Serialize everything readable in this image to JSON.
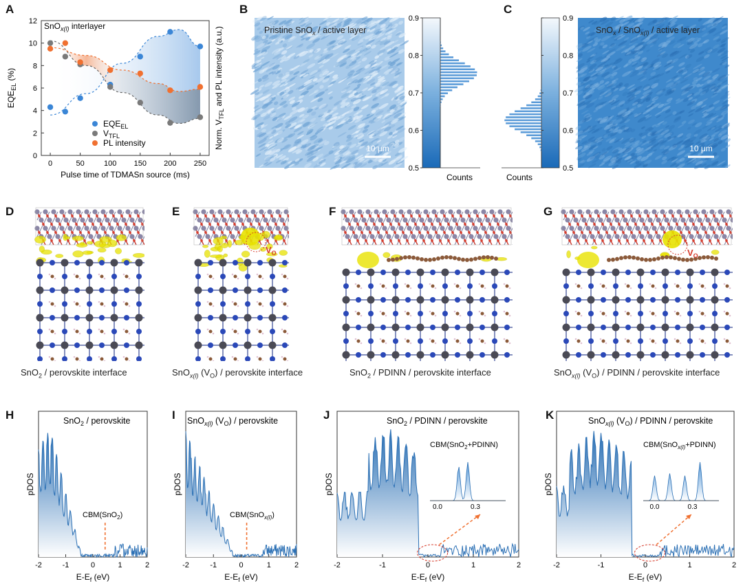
{
  "panels": {
    "A": {
      "label": "A",
      "inner_label": "SnO",
      "inner_label_sub": "x(l)",
      "inner_label_suffix": " interlayer",
      "xlabel": "Pulse time of TDMASn source (ms)",
      "ylabel_left": "EQE",
      "ylabel_left_sub": "EL",
      "ylabel_left_suffix": " (%)",
      "ylabel_right_a": "Norm. V",
      "ylabel_right_sub": "TFL",
      "ylabel_right_b": " and PL intensity (a.u.)",
      "legend": [
        {
          "text": "EQE",
          "sub": "EL",
          "color": "#3b86d6"
        },
        {
          "text": "V",
          "sub": "TFL",
          "color": "#7a7a7a"
        },
        {
          "text": "PL intensity",
          "sub": "",
          "color": "#f07030"
        }
      ]
    },
    "B": {
      "label": "B",
      "title_a": "Pristine SnO",
      "title_sub": "x",
      "title_b": " / active layer",
      "scale": "10 μm",
      "counts": "Counts"
    },
    "C": {
      "label": "C",
      "title_a": "SnO",
      "title_sub1": "x",
      "title_mid": " / SnO",
      "title_sub2": "x(l)",
      "title_b": " / active layer",
      "scale": "10 μm",
      "counts": "Counts"
    },
    "D": {
      "label": "D",
      "caption_a": "SnO",
      "caption_sub": "2",
      "caption_b": " / perovskite interface"
    },
    "E": {
      "label": "E",
      "caption_a": "SnO",
      "caption_sub": "x(l)",
      "caption_b": " (V",
      "caption_sub2": "O",
      "caption_c": ") / perovskite interface",
      "vo": "V",
      "vo_sub": "O"
    },
    "F": {
      "label": "F",
      "caption_a": "SnO",
      "caption_sub": "2",
      "caption_b": " / PDINN / perovskite interface"
    },
    "G": {
      "label": "G",
      "caption_a": "SnO",
      "caption_sub": "x(l)",
      "caption_b": " (V",
      "caption_sub2": "O",
      "caption_c": ") / PDINN / perovskite interface",
      "vo": "V",
      "vo_sub": "O"
    },
    "H": {
      "label": "H",
      "title_a": "SnO",
      "title_sub": "2",
      "title_b": " / perovskite",
      "cbm_a": "CBM(SnO",
      "cbm_sub": "2",
      "cbm_b": ")"
    },
    "I": {
      "label": "I",
      "title_a": "SnO",
      "title_sub": "x(l)",
      "title_b": " (V",
      "title_sub2": "O",
      "title_c": ") / perovskite",
      "cbm_a": "CBM(SnO",
      "cbm_sub": "x(l)",
      "cbm_b": ")"
    },
    "J": {
      "label": "J",
      "title_a": "SnO",
      "title_sub": "2",
      "title_b": " / PDINN / perovskite",
      "cbm_a": "CBM(SnO",
      "cbm_sub": "2",
      "cbm_b": "+PDINN)"
    },
    "K": {
      "label": "K",
      "title_a": "SnO",
      "title_sub": "x(l)",
      "title_b": " (V",
      "title_sub2": "O",
      "title_c": ") / PDINN / perovskite",
      "cbm_a": "CBM(SnO",
      "cbm_sub": "x(l)",
      "cbm_b": "+PDINN)"
    },
    "pdos": {
      "ylabel": "pDOS",
      "xlabel_a": "E-E",
      "xlabel_sub": "f",
      "xlabel_b": " (eV)",
      "inset_ticks": [
        "0.0",
        "0.3"
      ]
    }
  },
  "chart_data": [
    {
      "type": "scatter",
      "panel": "A",
      "x": [
        0,
        25,
        50,
        100,
        150,
        200,
        250
      ],
      "series": [
        {
          "name": "EQEEL",
          "axis": "left",
          "values": [
            4.3,
            3.9,
            5.1,
            6.3,
            8.8,
            11.0,
            9.7
          ]
        },
        {
          "name": "VTFL",
          "axis": "right",
          "values": [
            10.0,
            8.8,
            8.1,
            6.1,
            4.7,
            2.9,
            3.4
          ]
        },
        {
          "name": "PL intensity",
          "axis": "right",
          "values": [
            9.5,
            10.0,
            8.3,
            7.6,
            7.3,
            5.8,
            6.1
          ]
        }
      ],
      "xticks": [
        "0",
        "50",
        "100",
        "150",
        "200",
        "250"
      ],
      "yticks": [
        "0",
        "2",
        "4",
        "6",
        "8",
        "10",
        "12"
      ],
      "xlim": [
        -15,
        265
      ],
      "ylim": [
        0,
        12
      ]
    },
    {
      "type": "bar",
      "panel": "B",
      "orientation": "horizontal",
      "colorbar_ticks": [
        "0.5",
        "0.6",
        "0.7",
        "0.8",
        "0.9"
      ],
      "ylim": [
        0.5,
        0.9
      ],
      "bins_center": 0.75,
      "bins_sigma": 0.03
    },
    {
      "type": "bar",
      "panel": "C",
      "orientation": "horizontal",
      "colorbar_ticks": [
        "0.5",
        "0.6",
        "0.7",
        "0.8",
        "0.9"
      ],
      "ylim": [
        0.5,
        0.9
      ],
      "bins_center": 0.625,
      "bins_sigma": 0.03
    },
    {
      "type": "area",
      "panel": "H",
      "xticks": [
        "-2",
        "-1",
        "0",
        "1",
        "2"
      ],
      "xlim": [
        -2,
        2
      ],
      "cbm_x": 0.45
    },
    {
      "type": "area",
      "panel": "I",
      "xticks": [
        "-2",
        "-1",
        "0",
        "1",
        "2"
      ],
      "xlim": [
        -2,
        2
      ],
      "cbm_x": 0.2
    },
    {
      "type": "area",
      "panel": "J",
      "xticks": [
        "-2",
        "-1",
        "0",
        "1",
        "2"
      ],
      "xlim": [
        -2,
        2
      ]
    },
    {
      "type": "area",
      "panel": "K",
      "xticks": [
        "-2",
        "-1",
        "0",
        "1",
        "2"
      ],
      "xlim": [
        -2,
        2
      ]
    }
  ]
}
